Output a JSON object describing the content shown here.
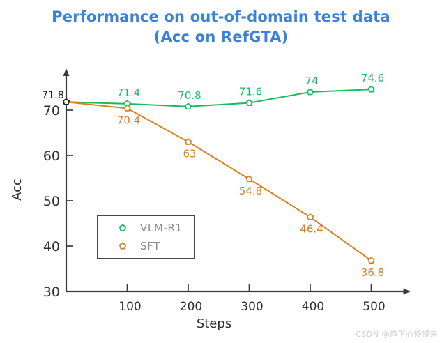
{
  "page": {
    "watermark": "CSDN @静下心慢慢来"
  },
  "colors": {
    "title": "#3b82d6",
    "axis": "#3a3a3a",
    "tick_text": "#2e2e2e",
    "legend_text": "#8a8a8a",
    "start_marker": "#222222",
    "vlm_r1": "#13bd60",
    "sft": "#d9811c"
  },
  "chart_data": {
    "type": "line",
    "title": "Performance on out-of-domain test data",
    "subtitle": "(Acc on RefGTA)",
    "xlabel": "Steps",
    "ylabel": "Acc",
    "x": [
      0,
      100,
      200,
      300,
      400,
      500
    ],
    "xticks": [
      100,
      200,
      300,
      400,
      500
    ],
    "yticks": [
      30,
      40,
      50,
      60,
      70
    ],
    "xlim": [
      0,
      560
    ],
    "ylim": [
      30,
      78
    ],
    "grid": false,
    "legend_position": "lower-left",
    "start_point_label": "71.8",
    "series": [
      {
        "name": "VLM-R1",
        "color": "#13bd60",
        "values": [
          71.8,
          71.4,
          70.8,
          71.6,
          74,
          74.6
        ],
        "labels": [
          null,
          "71.4",
          "70.8",
          "71.6",
          "74",
          "74.6"
        ],
        "label_side": "above"
      },
      {
        "name": "SFT",
        "color": "#d9811c",
        "values": [
          71.8,
          70.4,
          63,
          54.8,
          46.4,
          36.8
        ],
        "labels": [
          null,
          "70.4",
          "63",
          "54.8",
          "46.4",
          "36.8"
        ],
        "label_side": "below"
      }
    ]
  }
}
